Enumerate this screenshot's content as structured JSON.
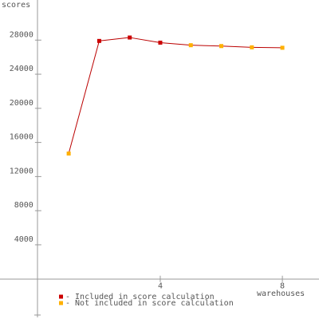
{
  "chart_data": {
    "type": "line",
    "y_label": "scores",
    "x_label": "warehouses",
    "x": [
      1,
      2,
      3,
      4,
      5,
      6,
      7,
      8
    ],
    "series": [
      {
        "name": "- Included in score calculation",
        "color": "#cc0000",
        "values": [
          null,
          27900,
          28300,
          27700,
          null,
          null,
          null,
          null
        ]
      },
      {
        "name": "- Not included in score calculation",
        "color": "#ffb000",
        "values": [
          14700,
          null,
          null,
          null,
          27400,
          27300,
          27150,
          27100
        ]
      }
    ],
    "line_color": "#bb0000",
    "xlim": [
      -1.25,
      9.2
    ],
    "xticks": [
      4,
      8
    ],
    "ylim": [
      -4700,
      32700
    ],
    "yticks": [
      4000,
      8000,
      12000,
      16000,
      20000,
      24000,
      28000
    ]
  }
}
